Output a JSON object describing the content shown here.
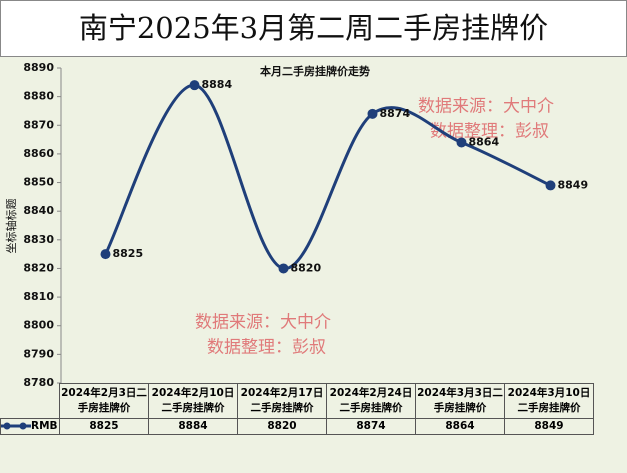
{
  "chart_data": {
    "type": "line",
    "title": "南宁2025年3月第二周二手房挂牌价",
    "subtitle": "本月二手房挂牌价走势",
    "y_label": "坐标轴标题",
    "categories": [
      "2024年2月3日二手房挂牌价",
      "2024年2月10日二手房挂牌价",
      "2024年2月17日二手房挂牌价",
      "2024年2月24日二手房挂牌价",
      "2024年3月3日二手房挂牌价",
      "2024年3月10日二手房挂牌价"
    ],
    "series": [
      {
        "name": "RMB",
        "color": "#1f3f7a",
        "values": [
          8825,
          8884,
          8820,
          8874,
          8864,
          8849
        ]
      }
    ],
    "ylim": [
      8780,
      8890
    ],
    "yticks": [
      8780,
      8790,
      8800,
      8810,
      8820,
      8830,
      8840,
      8850,
      8860,
      8870,
      8880,
      8890
    ],
    "annotations": [
      "数据来源：大中介",
      "数据整理：彭叔"
    ]
  }
}
